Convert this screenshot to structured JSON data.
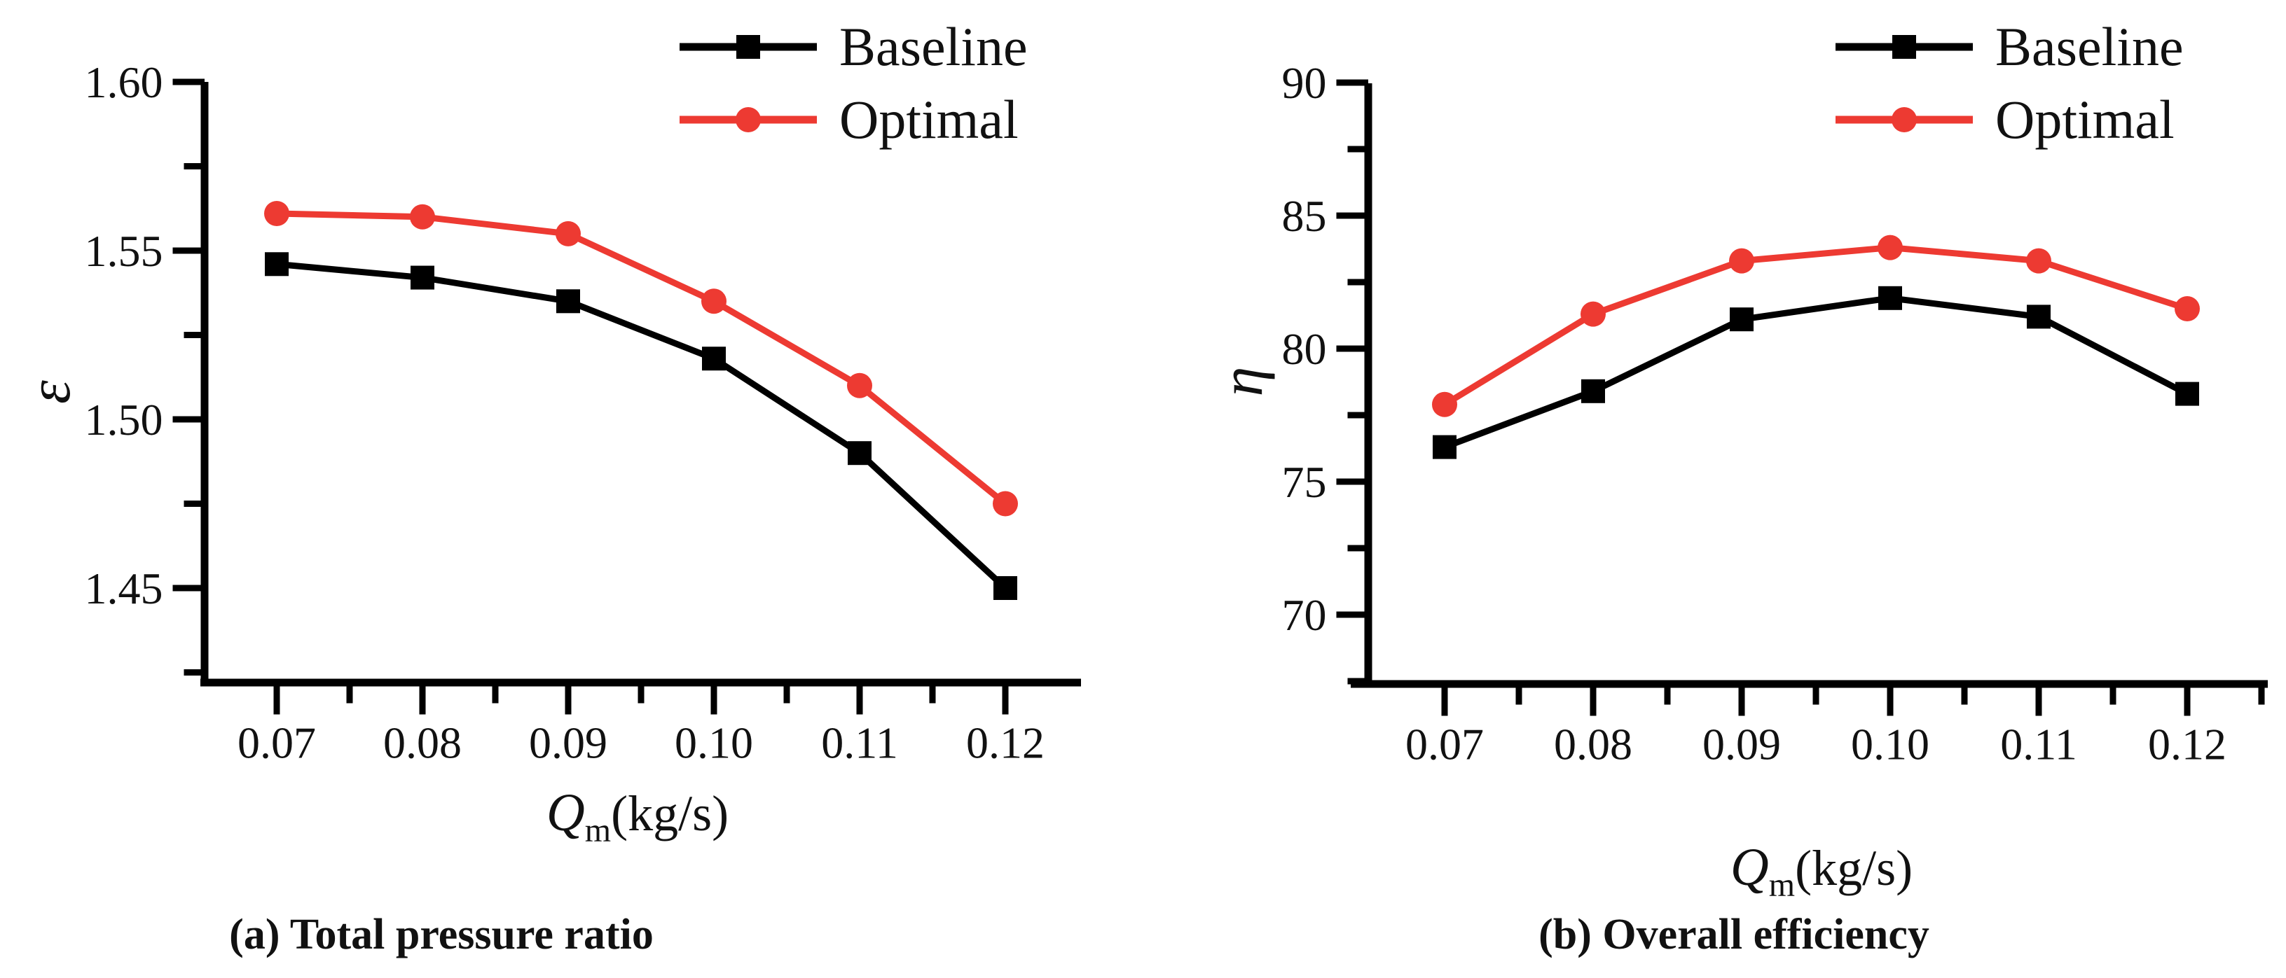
{
  "page": {
    "background": "#ffffff"
  },
  "colors": {
    "baseline": "#000000",
    "optimal": "#ed3a32",
    "axis": "#000000",
    "text": "#111111"
  },
  "chart_data": [
    {
      "id": "total-pressure-ratio",
      "type": "line",
      "caption": "(a) Total pressure ratio",
      "y_axis_title": "ε",
      "x_axis": {
        "symbol": "Q",
        "subscript": "m",
        "units": "(kg/s)"
      },
      "x": [
        0.07,
        0.08,
        0.09,
        0.1,
        0.11,
        0.12
      ],
      "x_tick_labels": [
        "0.07",
        "0.08",
        "0.09",
        "0.10",
        "0.11",
        "0.12"
      ],
      "y_ticks": [
        {
          "value": 1.6,
          "label": "1.60"
        },
        {
          "value": 1.55,
          "label": "1.55"
        },
        {
          "value": 1.5,
          "label": "1.50"
        },
        {
          "value": 1.45,
          "label": "1.45"
        }
      ],
      "xlim": [
        0.065,
        0.1252
      ],
      "ylim": [
        1.4266,
        1.6
      ],
      "grid": false,
      "legend_position": "top-right",
      "series": [
        {
          "name": "Baseline",
          "color": "#000000",
          "marker": "square",
          "values": [
            1.546,
            1.542,
            1.535,
            1.518,
            1.49,
            1.45
          ]
        },
        {
          "name": "Optimal",
          "color": "#ed3a32",
          "marker": "circle",
          "values": [
            1.561,
            1.56,
            1.555,
            1.535,
            1.51,
            1.475
          ]
        }
      ]
    },
    {
      "id": "overall-efficiency",
      "type": "line",
      "caption": "(b) Overall efficiency",
      "y_axis_title": "η",
      "x_axis": {
        "symbol": "Q",
        "subscript": "m",
        "units": "(kg/s)"
      },
      "x": [
        0.07,
        0.08,
        0.09,
        0.1,
        0.11,
        0.12
      ],
      "x_tick_labels": [
        "0.07",
        "0.08",
        "0.09",
        "0.10",
        "0.11",
        "0.12"
      ],
      "y_ticks": [
        {
          "value": 90,
          "label": "90"
        },
        {
          "value": 85,
          "label": "85"
        },
        {
          "value": 80,
          "label": "80"
        },
        {
          "value": 75,
          "label": "75"
        },
        {
          "value": 70,
          "label": "70"
        }
      ],
      "xlim": [
        0.0649,
        0.1254
      ],
      "ylim": [
        68.4,
        90
      ],
      "grid": false,
      "legend_position": "top-right",
      "series": [
        {
          "name": "Baseline",
          "color": "#000000",
          "marker": "square",
          "values": [
            76.3,
            78.4,
            81.1,
            81.9,
            81.2,
            78.3
          ]
        },
        {
          "name": "Optimal",
          "color": "#ed3a32",
          "marker": "circle",
          "values": [
            77.9,
            81.3,
            83.3,
            83.8,
            83.3,
            81.5
          ]
        }
      ]
    }
  ]
}
